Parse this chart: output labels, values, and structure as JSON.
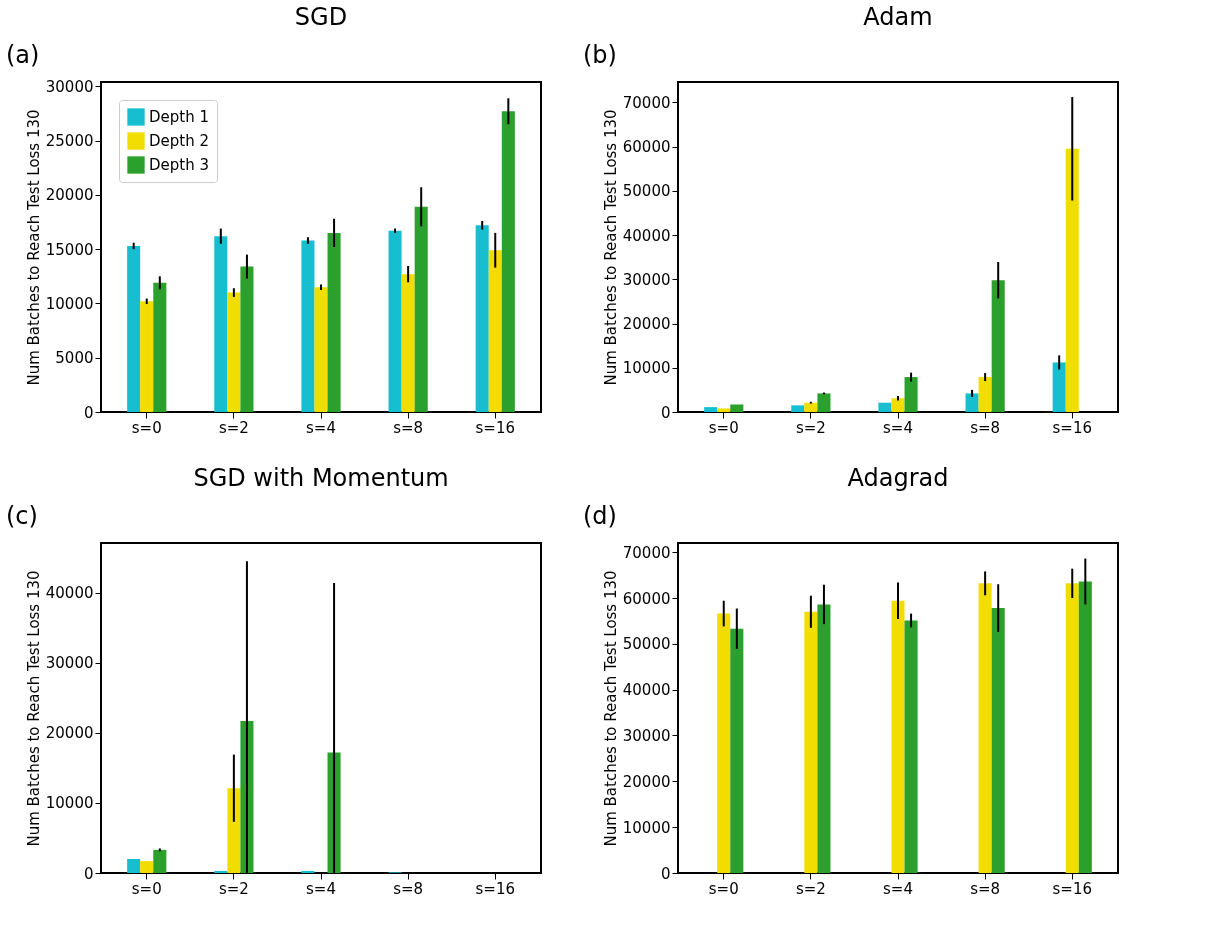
{
  "chart_data": [
    {
      "type": "bar",
      "title": "SGD",
      "annotations": [
        "(a)"
      ],
      "ylabel": "Num Batches to Reach Test Loss 130",
      "categories": [
        "s=0",
        "s=2",
        "s=4",
        "s=8",
        "s=16"
      ],
      "ylim": [
        0,
        30400
      ],
      "yticks": [
        0,
        5000,
        10000,
        15000,
        20000,
        25000,
        30000
      ],
      "grid": false,
      "legend": "top left",
      "series": [
        {
          "name": "Depth 1",
          "color": "#17becf",
          "values": [
            15300,
            16200,
            15800,
            16700,
            17200
          ],
          "errors": [
            300,
            700,
            300,
            200,
            400
          ]
        },
        {
          "name": "Depth 2",
          "color": "#f2dd00",
          "values": [
            10200,
            11000,
            11500,
            12700,
            14900
          ],
          "errors": [
            250,
            400,
            250,
            750,
            1600
          ]
        },
        {
          "name": "Depth 3",
          "color": "#2ca02c",
          "values": [
            11900,
            13400,
            16500,
            18900,
            27700
          ],
          "errors": [
            600,
            1100,
            1300,
            1800,
            1200
          ]
        }
      ]
    },
    {
      "type": "bar",
      "title": "Adam",
      "annotations": [
        "(b)"
      ],
      "ylabel": "Num Batches to Reach Test Loss 130",
      "categories": [
        "s=0",
        "s=2",
        "s=4",
        "s=8",
        "s=16"
      ],
      "ylim": [
        0,
        74600
      ],
      "yticks": [
        0,
        10000,
        20000,
        30000,
        40000,
        50000,
        60000,
        70000
      ],
      "grid": false,
      "series": [
        {
          "color": "#17becf",
          "values": [
            1100,
            1500,
            2100,
            4200,
            11200
          ],
          "errors": [
            null,
            null,
            null,
            800,
            1600
          ]
        },
        {
          "color": "#f2dd00",
          "values": [
            800,
            2100,
            3100,
            7900,
            59500
          ],
          "errors": [
            null,
            200,
            500,
            900,
            11700
          ]
        },
        {
          "color": "#2ca02c",
          "values": [
            1700,
            4200,
            7900,
            29800,
            null
          ],
          "errors": [
            null,
            200,
            1000,
            4100,
            null
          ]
        }
      ]
    },
    {
      "type": "bar",
      "title": "SGD with Momentum",
      "annotations": [
        "(c)"
      ],
      "ylabel": "Num Batches to Reach Test Loss 130",
      "categories": [
        "s=0",
        "s=2",
        "s=4",
        "s=8",
        "s=16"
      ],
      "ylim": [
        0,
        47100
      ],
      "yticks": [
        0,
        10000,
        20000,
        30000,
        40000
      ],
      "grid": false,
      "series": [
        {
          "color": "#17becf",
          "values": [
            2000,
            300,
            300,
            100,
            null
          ]
        },
        {
          "color": "#f2dd00",
          "values": [
            1700,
            12100,
            null,
            null,
            null
          ],
          "errors": [
            null,
            4800,
            null,
            null,
            null
          ]
        },
        {
          "color": "#2ca02c",
          "values": [
            3300,
            21700,
            17200,
            null,
            null
          ],
          "errors": [
            200,
            [
              0,
              44500
            ],
            [
              0,
              41400
            ],
            null,
            null
          ]
        }
      ]
    },
    {
      "type": "bar",
      "title": "Adagrad",
      "annotations": [
        "(d)"
      ],
      "ylabel": "Num Batches to Reach Test Loss 130",
      "categories": [
        "s=0",
        "s=2",
        "s=4",
        "s=8",
        "s=16"
      ],
      "ylim": [
        0,
        72000
      ],
      "yticks": [
        0,
        10000,
        20000,
        30000,
        40000,
        50000,
        60000,
        70000
      ],
      "grid": false,
      "series": [
        {
          "color": "#17becf",
          "values": [
            null,
            null,
            null,
            null,
            null
          ]
        },
        {
          "color": "#f2dd00",
          "values": [
            56600,
            57000,
            59400,
            63200,
            63200
          ],
          "errors": [
            2800,
            3500,
            4000,
            2600,
            3200
          ]
        },
        {
          "color": "#2ca02c",
          "values": [
            53300,
            58600,
            55100,
            57800,
            63600
          ],
          "errors": [
            4400,
            4300,
            1500,
            5200,
            5000
          ]
        }
      ]
    }
  ]
}
